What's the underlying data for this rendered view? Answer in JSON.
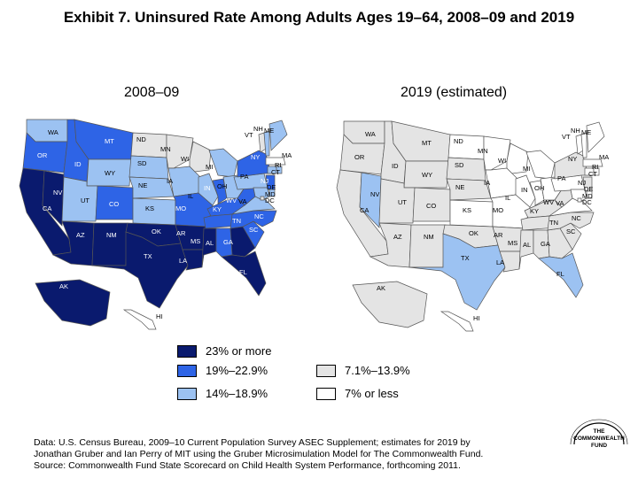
{
  "title": "Exhibit 7. Uninsured Rate Among Adults Ages 19–64, 2008–09 and 2019",
  "colors": {
    "c23plus": "#0a1a6e",
    "c19to22": "#2e64e6",
    "c14to18": "#9cc2f2",
    "c7to13": "#e4e4e4",
    "cunder7": "#ffffff",
    "border": "#555555"
  },
  "maps": [
    {
      "heading": "2008–09",
      "states": [
        {
          "code": "WA",
          "cat": "c14to18"
        },
        {
          "code": "OR",
          "cat": "c19to22"
        },
        {
          "code": "CA",
          "cat": "c23plus"
        },
        {
          "code": "NV",
          "cat": "c23plus"
        },
        {
          "code": "ID",
          "cat": "c19to22"
        },
        {
          "code": "MT",
          "cat": "c19to22"
        },
        {
          "code": "WY",
          "cat": "c14to18"
        },
        {
          "code": "UT",
          "cat": "c14to18"
        },
        {
          "code": "AZ",
          "cat": "c23plus"
        },
        {
          "code": "CO",
          "cat": "c19to22"
        },
        {
          "code": "NM",
          "cat": "c23plus"
        },
        {
          "code": "ND",
          "cat": "c7to13"
        },
        {
          "code": "SD",
          "cat": "c14to18"
        },
        {
          "code": "NE",
          "cat": "c14to18"
        },
        {
          "code": "KS",
          "cat": "c14to18"
        },
        {
          "code": "OK",
          "cat": "c23plus"
        },
        {
          "code": "TX",
          "cat": "c23plus"
        },
        {
          "code": "MN",
          "cat": "c7to13"
        },
        {
          "code": "IA",
          "cat": "c14to18"
        },
        {
          "code": "MO",
          "cat": "c19to22"
        },
        {
          "code": "AR",
          "cat": "c23plus"
        },
        {
          "code": "LA",
          "cat": "c23plus"
        },
        {
          "code": "WI",
          "cat": "c7to13"
        },
        {
          "code": "IL",
          "cat": "c14to18"
        },
        {
          "code": "MI",
          "cat": "c14to18"
        },
        {
          "code": "IN",
          "cat": "c19to22"
        },
        {
          "code": "OH",
          "cat": "c14to18"
        },
        {
          "code": "KY",
          "cat": "c19to22"
        },
        {
          "code": "TN",
          "cat": "c19to22"
        },
        {
          "code": "MS",
          "cat": "c23plus"
        },
        {
          "code": "AL",
          "cat": "c19to22"
        },
        {
          "code": "GA",
          "cat": "c23plus"
        },
        {
          "code": "FL",
          "cat": "c23plus"
        },
        {
          "code": "SC",
          "cat": "c19to22"
        },
        {
          "code": "NC",
          "cat": "c19to22"
        },
        {
          "code": "VA",
          "cat": "c14to18"
        },
        {
          "code": "WV",
          "cat": "c19to22"
        },
        {
          "code": "PA",
          "cat": "c14to18"
        },
        {
          "code": "NY",
          "cat": "c19to22"
        },
        {
          "code": "NJ",
          "cat": "c19to22"
        },
        {
          "code": "DE",
          "cat": "c14to18"
        },
        {
          "code": "MD",
          "cat": "c14to18"
        },
        {
          "code": "DC",
          "cat": "c7to13"
        },
        {
          "code": "CT",
          "cat": "c14to18"
        },
        {
          "code": "RI",
          "cat": "c14to18"
        },
        {
          "code": "MA",
          "cat": "cunder7"
        },
        {
          "code": "VT",
          "cat": "c7to13"
        },
        {
          "code": "NH",
          "cat": "c14to18"
        },
        {
          "code": "ME",
          "cat": "c14to18"
        },
        {
          "code": "AK",
          "cat": "c23plus"
        },
        {
          "code": "HI",
          "cat": "cunder7"
        }
      ]
    },
    {
      "heading": "2019 (estimated)",
      "states": [
        {
          "code": "WA",
          "cat": "c7to13"
        },
        {
          "code": "OR",
          "cat": "c7to13"
        },
        {
          "code": "CA",
          "cat": "c7to13"
        },
        {
          "code": "NV",
          "cat": "c14to18"
        },
        {
          "code": "ID",
          "cat": "c7to13"
        },
        {
          "code": "MT",
          "cat": "c7to13"
        },
        {
          "code": "WY",
          "cat": "c7to13"
        },
        {
          "code": "UT",
          "cat": "c7to13"
        },
        {
          "code": "AZ",
          "cat": "c7to13"
        },
        {
          "code": "CO",
          "cat": "c7to13"
        },
        {
          "code": "NM",
          "cat": "c7to13"
        },
        {
          "code": "ND",
          "cat": "cunder7"
        },
        {
          "code": "SD",
          "cat": "c7to13"
        },
        {
          "code": "NE",
          "cat": "c7to13"
        },
        {
          "code": "KS",
          "cat": "cunder7"
        },
        {
          "code": "OK",
          "cat": "c7to13"
        },
        {
          "code": "TX",
          "cat": "c14to18"
        },
        {
          "code": "MN",
          "cat": "cunder7"
        },
        {
          "code": "IA",
          "cat": "cunder7"
        },
        {
          "code": "MO",
          "cat": "cunder7"
        },
        {
          "code": "AR",
          "cat": "c7to13"
        },
        {
          "code": "LA",
          "cat": "c7to13"
        },
        {
          "code": "WI",
          "cat": "cunder7"
        },
        {
          "code": "IL",
          "cat": "cunder7"
        },
        {
          "code": "MI",
          "cat": "cunder7"
        },
        {
          "code": "IN",
          "cat": "cunder7"
        },
        {
          "code": "OH",
          "cat": "cunder7"
        },
        {
          "code": "KY",
          "cat": "c7to13"
        },
        {
          "code": "TN",
          "cat": "c7to13"
        },
        {
          "code": "MS",
          "cat": "c7to13"
        },
        {
          "code": "AL",
          "cat": "c7to13"
        },
        {
          "code": "GA",
          "cat": "c7to13"
        },
        {
          "code": "FL",
          "cat": "c14to18"
        },
        {
          "code": "SC",
          "cat": "c7to13"
        },
        {
          "code": "NC",
          "cat": "c7to13"
        },
        {
          "code": "VA",
          "cat": "cunder7"
        },
        {
          "code": "WV",
          "cat": "c7to13"
        },
        {
          "code": "PA",
          "cat": "cunder7"
        },
        {
          "code": "NY",
          "cat": "c7to13"
        },
        {
          "code": "NJ",
          "cat": "c7to13"
        },
        {
          "code": "DE",
          "cat": "cunder7"
        },
        {
          "code": "MD",
          "cat": "cunder7"
        },
        {
          "code": "DC",
          "cat": "cunder7"
        },
        {
          "code": "CT",
          "cat": "cunder7"
        },
        {
          "code": "RI",
          "cat": "cunder7"
        },
        {
          "code": "MA",
          "cat": "cunder7"
        },
        {
          "code": "VT",
          "cat": "cunder7"
        },
        {
          "code": "NH",
          "cat": "cunder7"
        },
        {
          "code": "ME",
          "cat": "cunder7"
        },
        {
          "code": "AK",
          "cat": "c7to13"
        },
        {
          "code": "HI",
          "cat": "cunder7"
        }
      ]
    }
  ],
  "legend": [
    {
      "key": "c23plus",
      "label": "23% or more"
    },
    {
      "key": "c19to22",
      "label": "19%–22.9%"
    },
    {
      "key": "c14to18",
      "label": "14%–18.9%"
    },
    {
      "key": "c7to13",
      "label": "7.1%–13.9%"
    },
    {
      "key": "cunder7",
      "label": "7% or less"
    }
  ],
  "footnote": [
    "Data: U.S. Census Bureau, 2009–10 Current Population Survey ASEC Supplement; estimates for 2019 by",
    "Jonathan Gruber and Ian Perry of MIT using the Gruber Microsimulation Model for The Commonwealth Fund.",
    "Source: Commonwealth Fund State Scorecard on Child Health System Performance, forthcoming 2011."
  ],
  "logo": [
    "THE",
    "COMMONWEALTH",
    "FUND"
  ]
}
